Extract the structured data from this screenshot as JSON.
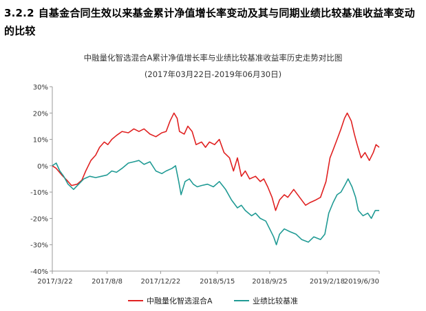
{
  "heading": {
    "number": "3.2.2",
    "text": "自基金合同生效以来基金累计净值增长率变动及其与同期业绩比较基准收益率变动的比较"
  },
  "chart_data": {
    "type": "line",
    "title": "中融量化智选混合A累计净值增长率与业绩比较基准收益率历史走势对比图",
    "subtitle": "(2017年03月22日-2019年06月30日)",
    "y_unit": "%",
    "ylim": [
      -40,
      30
    ],
    "yticks": [
      -40,
      -30,
      -20,
      -10,
      0,
      10,
      20,
      30
    ],
    "ytick_labels": [
      "-40%",
      "-30%",
      "-20%",
      "-10%",
      "0%",
      "10%",
      "20%",
      "30%"
    ],
    "xlim": [
      "2017-03-22",
      "2019-06-30"
    ],
    "xticks": [
      "2017-03-22",
      "2017-08-08",
      "2017-12-22",
      "2018-05-15",
      "2018-09-25",
      "2019-02-18",
      "2019-06-30"
    ],
    "xtick_labels": [
      "2017/3/22",
      "2017/8/8",
      "2017/12/22",
      "2018/5/15",
      "2018/9/25",
      "2019/2/18",
      "2019/6/30"
    ],
    "grid": false,
    "legend_position": "bottom",
    "series": [
      {
        "name": "中融量化智选混合A",
        "color": "#e02020",
        "points": [
          [
            "2017-03-22",
            0
          ],
          [
            "2017-04-01",
            -1
          ],
          [
            "2017-04-15",
            -3.5
          ],
          [
            "2017-04-28",
            -5.5
          ],
          [
            "2017-05-10",
            -7.5
          ],
          [
            "2017-05-24",
            -7
          ],
          [
            "2017-06-05",
            -5.5
          ],
          [
            "2017-06-15",
            -2
          ],
          [
            "2017-06-28",
            2
          ],
          [
            "2017-07-10",
            4
          ],
          [
            "2017-07-20",
            7
          ],
          [
            "2017-08-01",
            9
          ],
          [
            "2017-08-10",
            8
          ],
          [
            "2017-08-20",
            10
          ],
          [
            "2017-09-01",
            11.5
          ],
          [
            "2017-09-15",
            13
          ],
          [
            "2017-10-01",
            12.5
          ],
          [
            "2017-10-15",
            14
          ],
          [
            "2017-10-28",
            13
          ],
          [
            "2017-11-10",
            14
          ],
          [
            "2017-11-25",
            12
          ],
          [
            "2017-12-10",
            11
          ],
          [
            "2017-12-25",
            12.5
          ],
          [
            "2018-01-05",
            13
          ],
          [
            "2018-01-15",
            17
          ],
          [
            "2018-01-25",
            20
          ],
          [
            "2018-02-02",
            18
          ],
          [
            "2018-02-08",
            13
          ],
          [
            "2018-02-20",
            12
          ],
          [
            "2018-03-01",
            15
          ],
          [
            "2018-03-12",
            13
          ],
          [
            "2018-03-22",
            8
          ],
          [
            "2018-04-05",
            9
          ],
          [
            "2018-04-15",
            7
          ],
          [
            "2018-04-25",
            9
          ],
          [
            "2018-05-08",
            8
          ],
          [
            "2018-05-20",
            10
          ],
          [
            "2018-06-01",
            5
          ],
          [
            "2018-06-15",
            3
          ],
          [
            "2018-06-25",
            -2
          ],
          [
            "2018-07-05",
            3
          ],
          [
            "2018-07-15",
            -4
          ],
          [
            "2018-07-25",
            -2
          ],
          [
            "2018-08-05",
            -5
          ],
          [
            "2018-08-20",
            -4
          ],
          [
            "2018-09-01",
            -6
          ],
          [
            "2018-09-10",
            -5
          ],
          [
            "2018-09-20",
            -8
          ],
          [
            "2018-10-01",
            -12
          ],
          [
            "2018-10-10",
            -17
          ],
          [
            "2018-10-20",
            -13
          ],
          [
            "2018-11-01",
            -11
          ],
          [
            "2018-11-10",
            -12
          ],
          [
            "2018-11-25",
            -9
          ],
          [
            "2018-12-10",
            -12
          ],
          [
            "2018-12-25",
            -15
          ],
          [
            "2019-01-05",
            -14
          ],
          [
            "2019-01-20",
            -13
          ],
          [
            "2019-02-01",
            -12
          ],
          [
            "2019-02-15",
            -6
          ],
          [
            "2019-02-25",
            3
          ],
          [
            "2019-03-05",
            6
          ],
          [
            "2019-03-15",
            10
          ],
          [
            "2019-03-25",
            14
          ],
          [
            "2019-04-03",
            18
          ],
          [
            "2019-04-10",
            20
          ],
          [
            "2019-04-20",
            17
          ],
          [
            "2019-04-28",
            12
          ],
          [
            "2019-05-05",
            8
          ],
          [
            "2019-05-15",
            3
          ],
          [
            "2019-05-25",
            5
          ],
          [
            "2019-06-05",
            2
          ],
          [
            "2019-06-15",
            5
          ],
          [
            "2019-06-22",
            8
          ],
          [
            "2019-06-30",
            7
          ]
        ]
      },
      {
        "name": "业绩比较基准",
        "color": "#1f9a94",
        "points": [
          [
            "2017-03-22",
            0
          ],
          [
            "2017-04-01",
            1
          ],
          [
            "2017-04-10",
            -2
          ],
          [
            "2017-04-20",
            -4
          ],
          [
            "2017-05-01",
            -7
          ],
          [
            "2017-05-15",
            -9
          ],
          [
            "2017-05-28",
            -7
          ],
          [
            "2017-06-10",
            -5
          ],
          [
            "2017-06-25",
            -4
          ],
          [
            "2017-07-10",
            -4.5
          ],
          [
            "2017-07-25",
            -4
          ],
          [
            "2017-08-08",
            -3.5
          ],
          [
            "2017-08-20",
            -2
          ],
          [
            "2017-09-01",
            -2.5
          ],
          [
            "2017-09-15",
            -1
          ],
          [
            "2017-10-01",
            1
          ],
          [
            "2017-10-15",
            1.5
          ],
          [
            "2017-10-28",
            2
          ],
          [
            "2017-11-10",
            0.5
          ],
          [
            "2017-11-25",
            1.5
          ],
          [
            "2017-12-10",
            -2
          ],
          [
            "2017-12-25",
            -3
          ],
          [
            "2018-01-05",
            -2
          ],
          [
            "2018-01-20",
            -1
          ],
          [
            "2018-01-29",
            0
          ],
          [
            "2018-02-06",
            -6
          ],
          [
            "2018-02-12",
            -11
          ],
          [
            "2018-02-22",
            -6
          ],
          [
            "2018-03-05",
            -5
          ],
          [
            "2018-03-15",
            -7
          ],
          [
            "2018-03-25",
            -8
          ],
          [
            "2018-04-05",
            -7.5
          ],
          [
            "2018-04-20",
            -7
          ],
          [
            "2018-05-05",
            -8
          ],
          [
            "2018-05-20",
            -6
          ],
          [
            "2018-06-05",
            -9
          ],
          [
            "2018-06-20",
            -13
          ],
          [
            "2018-07-05",
            -16
          ],
          [
            "2018-07-15",
            -15
          ],
          [
            "2018-07-25",
            -17
          ],
          [
            "2018-08-10",
            -19
          ],
          [
            "2018-08-20",
            -18
          ],
          [
            "2018-09-01",
            -20
          ],
          [
            "2018-09-15",
            -21
          ],
          [
            "2018-09-25",
            -24
          ],
          [
            "2018-10-05",
            -27
          ],
          [
            "2018-10-12",
            -30
          ],
          [
            "2018-10-20",
            -26
          ],
          [
            "2018-11-01",
            -24
          ],
          [
            "2018-11-15",
            -25
          ],
          [
            "2018-12-01",
            -26
          ],
          [
            "2018-12-15",
            -28
          ],
          [
            "2019-01-01",
            -29
          ],
          [
            "2019-01-15",
            -27
          ],
          [
            "2019-02-01",
            -28
          ],
          [
            "2019-02-12",
            -26
          ],
          [
            "2019-02-22",
            -18
          ],
          [
            "2019-03-05",
            -14
          ],
          [
            "2019-03-15",
            -11
          ],
          [
            "2019-03-25",
            -10
          ],
          [
            "2019-04-05",
            -7
          ],
          [
            "2019-04-12",
            -5
          ],
          [
            "2019-04-22",
            -8
          ],
          [
            "2019-05-01",
            -12
          ],
          [
            "2019-05-08",
            -17
          ],
          [
            "2019-05-20",
            -19
          ],
          [
            "2019-06-01",
            -18
          ],
          [
            "2019-06-10",
            -20
          ],
          [
            "2019-06-20",
            -17
          ],
          [
            "2019-06-30",
            -17
          ]
        ]
      }
    ]
  }
}
